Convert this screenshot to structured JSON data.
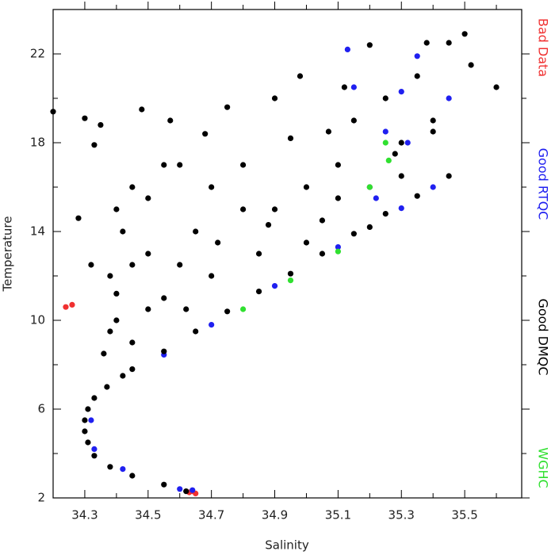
{
  "chart_data": {
    "type": "scatter",
    "x_label": "Salinity",
    "y_label": "Temperature",
    "xlim": [
      34.2,
      35.68
    ],
    "ylim": [
      2,
      24
    ],
    "xticks": [
      34.3,
      34.5,
      34.7,
      34.9,
      35.1,
      35.3,
      35.5
    ],
    "yticks": [
      2,
      6,
      10,
      14,
      18,
      22
    ],
    "x_minor_ticks": [
      34.4,
      34.6,
      34.8,
      35.0,
      35.2,
      35.4,
      35.6
    ],
    "y_minor_ticks": [
      4,
      8,
      12,
      16,
      20
    ],
    "legend": "right",
    "series": [
      {
        "name": "Bad Data",
        "color": "#f03030",
        "x": [
          34.24,
          34.26,
          34.63,
          34.64,
          34.65
        ],
        "y": [
          10.6,
          10.7,
          2.25,
          2.3,
          2.2
        ]
      },
      {
        "name": "Good RTQC",
        "color": "#2020f0",
        "x": [
          34.64,
          34.6,
          34.42,
          34.33,
          34.32,
          34.55,
          34.7,
          34.9,
          35.1,
          35.3,
          35.4,
          35.13,
          35.15,
          35.3,
          35.35,
          35.45,
          35.25,
          35.32,
          35.22
        ],
        "y": [
          2.35,
          2.4,
          3.3,
          4.2,
          5.5,
          8.45,
          9.8,
          11.55,
          13.3,
          15.05,
          16,
          22.2,
          20.5,
          20.3,
          21.9,
          20,
          18.5,
          18,
          15.5
        ]
      },
      {
        "name": "Good DMQC",
        "color": "#000000",
        "x": [
          34.62,
          34.55,
          34.45,
          34.38,
          34.33,
          34.31,
          34.3,
          34.3,
          34.31,
          34.33,
          34.37,
          34.42,
          34.45,
          34.55,
          34.65,
          34.75,
          34.85,
          34.95,
          35.05,
          35.15,
          35.25,
          35.35,
          35.45,
          34.45,
          34.4,
          34.38,
          34.42,
          34.45,
          34.5,
          34.55,
          34.6,
          34.65,
          34.7,
          34.75,
          34.8,
          34.85,
          34.9,
          34.95,
          35.0,
          35.05,
          35.1,
          35.15,
          35.2,
          35.25,
          35.3,
          35.35,
          35.4,
          35.45,
          35.5,
          35.52,
          34.3,
          34.35,
          34.33,
          34.48,
          34.57,
          34.2,
          34.28,
          34.32,
          34.6,
          34.68,
          34.9,
          34.98,
          35.2,
          35.38,
          35.12,
          35.07,
          35.28,
          35.4,
          35.6,
          34.5,
          34.55,
          34.7,
          34.8,
          34.62,
          34.72,
          34.88,
          34.5,
          34.45,
          34.4,
          35.0,
          35.1,
          35.2,
          35.3,
          34.36,
          34.38,
          34.4
        ],
        "y": [
          2.3,
          2.6,
          3.0,
          3.4,
          3.9,
          4.5,
          5.0,
          5.5,
          6.0,
          6.5,
          7.0,
          7.5,
          7.8,
          8.6,
          9.5,
          10.4,
          11.3,
          12.1,
          13.0,
          13.9,
          14.8,
          15.6,
          16.5,
          9,
          10,
          12,
          14,
          16,
          15.5,
          11,
          12.5,
          14,
          16,
          19.6,
          17,
          13,
          15,
          18.2,
          16,
          14.5,
          17,
          19,
          16,
          20,
          18,
          21,
          19,
          22.5,
          22.9,
          21.5,
          19.1,
          18.8,
          17.9,
          19.5,
          19,
          19.4,
          14.6,
          12.5,
          17,
          18.4,
          20,
          21,
          22.4,
          22.5,
          20.5,
          18.5,
          17.5,
          18.5,
          20.5,
          13,
          17,
          12,
          15,
          10.5,
          13.5,
          14.3,
          10.5,
          12.5,
          15,
          13.5,
          15.5,
          14.2,
          16.5,
          8.5,
          9.5,
          11.2
        ]
      },
      {
        "name": "WGHC",
        "color": "#30e030",
        "x": [
          35.25,
          35.26,
          35.2,
          34.8,
          34.95,
          35.1
        ],
        "y": [
          18,
          17.2,
          16,
          10.5,
          11.8,
          13.1
        ]
      }
    ]
  }
}
